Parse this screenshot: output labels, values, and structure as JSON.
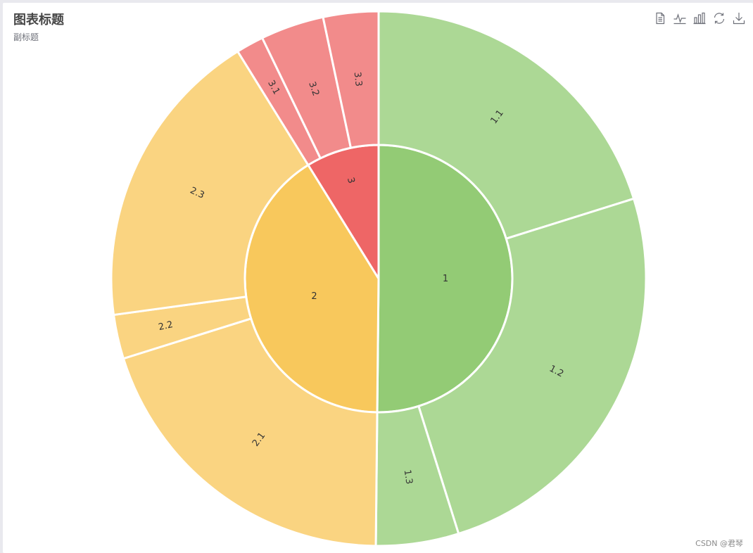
{
  "chart_data": {
    "type": "sunburst",
    "title": "图表标题",
    "subtitle": "副标题",
    "level_colors": {
      "1": {
        "inner": "#93cb75",
        "outer": "#acd895"
      },
      "2": {
        "inner": "#f8c85c",
        "outer": "#fad481"
      },
      "3": {
        "inner": "#ee6666",
        "outer": "#f28b8b"
      }
    },
    "data": [
      {
        "name": "1",
        "value": 15.05,
        "children": [
          {
            "name": "1.1",
            "value": 6.05
          },
          {
            "name": "1.2",
            "value": 7.5
          },
          {
            "name": "1.3",
            "value": 1.5
          }
        ]
      },
      {
        "name": "2",
        "value": 12.3,
        "children": [
          {
            "name": "2.1",
            "value": 6.0
          },
          {
            "name": "2.2",
            "value": 0.8
          },
          {
            "name": "2.3",
            "value": 5.5
          }
        ]
      },
      {
        "name": "3",
        "value": 2.65,
        "children": [
          {
            "name": "3.1",
            "value": 0.5
          },
          {
            "name": "3.2",
            "value": 1.15
          },
          {
            "name": "3.3",
            "value": 1.0
          }
        ]
      }
    ]
  },
  "toolbox": {
    "items": [
      {
        "icon": "data-view-icon"
      },
      {
        "icon": "line-chart-icon"
      },
      {
        "icon": "bar-chart-icon"
      },
      {
        "icon": "restore-icon"
      },
      {
        "icon": "save-image-icon"
      }
    ]
  },
  "watermark": "CSDN @君琴"
}
